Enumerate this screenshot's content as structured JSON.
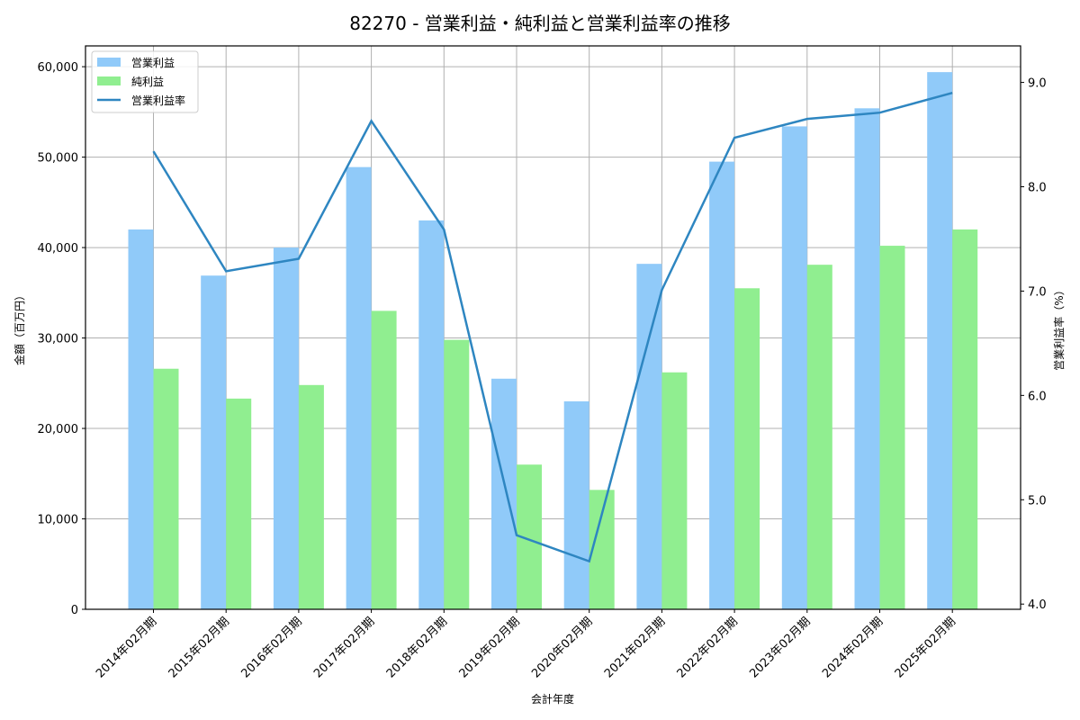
{
  "chart_data": {
    "type": "bar",
    "title": "82270 - 営業利益・純利益と営業利益率の推移",
    "xlabel": "会計年度",
    "ylabel": "金額（百万円）",
    "y2label": "営業利益率（%）",
    "categories": [
      "2014年02月期",
      "2015年02月期",
      "2016年02月期",
      "2017年02月期",
      "2018年02月期",
      "2019年02月期",
      "2020年02月期",
      "2021年02月期",
      "2022年02月期",
      "2023年02月期",
      "2024年02月期",
      "2025年02月期"
    ],
    "series": [
      {
        "name": "営業利益",
        "type": "bar",
        "axis": "left",
        "color": "#90caf9",
        "values": [
          42000,
          36900,
          40000,
          48900,
          43000,
          25500,
          23000,
          38200,
          49500,
          53400,
          55400,
          59400
        ]
      },
      {
        "name": "純利益",
        "type": "bar",
        "axis": "left",
        "color": "#90ee90",
        "values": [
          26600,
          23300,
          24800,
          33000,
          29800,
          16000,
          13200,
          26200,
          35500,
          38100,
          40200,
          42000
        ]
      },
      {
        "name": "営業利益率",
        "type": "line",
        "axis": "right",
        "color": "#2e86c1",
        "values": [
          8.34,
          7.19,
          7.31,
          8.63,
          7.59,
          4.66,
          4.41,
          7.01,
          8.47,
          8.65,
          8.71,
          8.9
        ]
      }
    ],
    "ylim": [
      0,
      62300
    ],
    "y2lim": [
      3.95,
      9.35
    ],
    "yticks": [
      0,
      10000,
      20000,
      30000,
      40000,
      50000,
      60000
    ],
    "ytick_labels": [
      "0",
      "10,000",
      "20,000",
      "30,000",
      "40,000",
      "50,000",
      "60,000"
    ],
    "y2ticks": [
      4.0,
      5.0,
      6.0,
      7.0,
      8.0,
      9.0
    ],
    "y2tick_labels": [
      "4.0",
      "5.0",
      "6.0",
      "7.0",
      "8.0",
      "9.0"
    ],
    "grid": true,
    "legend_position": "upper left"
  }
}
